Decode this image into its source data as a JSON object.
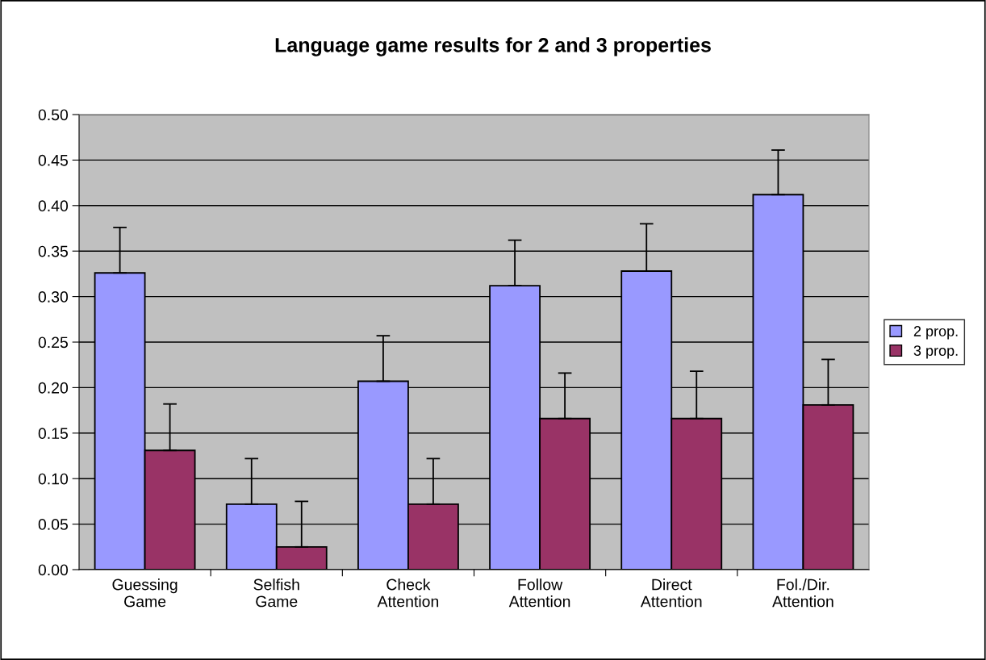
{
  "chart_data": {
    "type": "bar",
    "title": "Language game results for 2 and 3 properties",
    "categories": [
      "Guessing\nGame",
      "Selfish\nGame",
      "Check\nAttention",
      "Follow\nAttention",
      "Direct\nAttention",
      "Fol./Dir.\nAttention"
    ],
    "series": [
      {
        "name": "2 prop.",
        "color": "#9999ff",
        "values": [
          0.326,
          0.072,
          0.207,
          0.312,
          0.328,
          0.412
        ],
        "errors": [
          [
            0.326,
            0.376
          ],
          [
            0.072,
            0.122
          ],
          [
            0.207,
            0.257
          ],
          [
            0.312,
            0.362
          ],
          [
            0.328,
            0.38
          ],
          [
            0.412,
            0.461
          ]
        ]
      },
      {
        "name": "3 prop.",
        "color": "#993366",
        "values": [
          0.131,
          0.025,
          0.072,
          0.166,
          0.166,
          0.181
        ],
        "errors": [
          [
            0.131,
            0.182
          ],
          [
            0.025,
            0.075
          ],
          [
            0.072,
            0.122
          ],
          [
            0.166,
            0.216
          ],
          [
            0.166,
            0.218
          ],
          [
            0.181,
            0.231
          ]
        ]
      }
    ],
    "ylim": [
      0,
      0.5
    ],
    "yticks": [
      {
        "value": 0,
        "label": "0.00"
      },
      {
        "value": 0.05,
        "label": "0.05"
      },
      {
        "value": 0.1,
        "label": "0.10"
      },
      {
        "value": 0.15,
        "label": "0.15"
      },
      {
        "value": 0.2,
        "label": "0.20"
      },
      {
        "value": 0.25,
        "label": "0.25"
      },
      {
        "value": 0.3,
        "label": "0.30"
      },
      {
        "value": 0.35,
        "label": "0.35"
      },
      {
        "value": 0.4,
        "label": "0.40"
      },
      {
        "value": 0.45,
        "label": "0.45"
      },
      {
        "value": 0.5,
        "label": "0.50"
      }
    ],
    "grid": "y",
    "legend": "right"
  }
}
